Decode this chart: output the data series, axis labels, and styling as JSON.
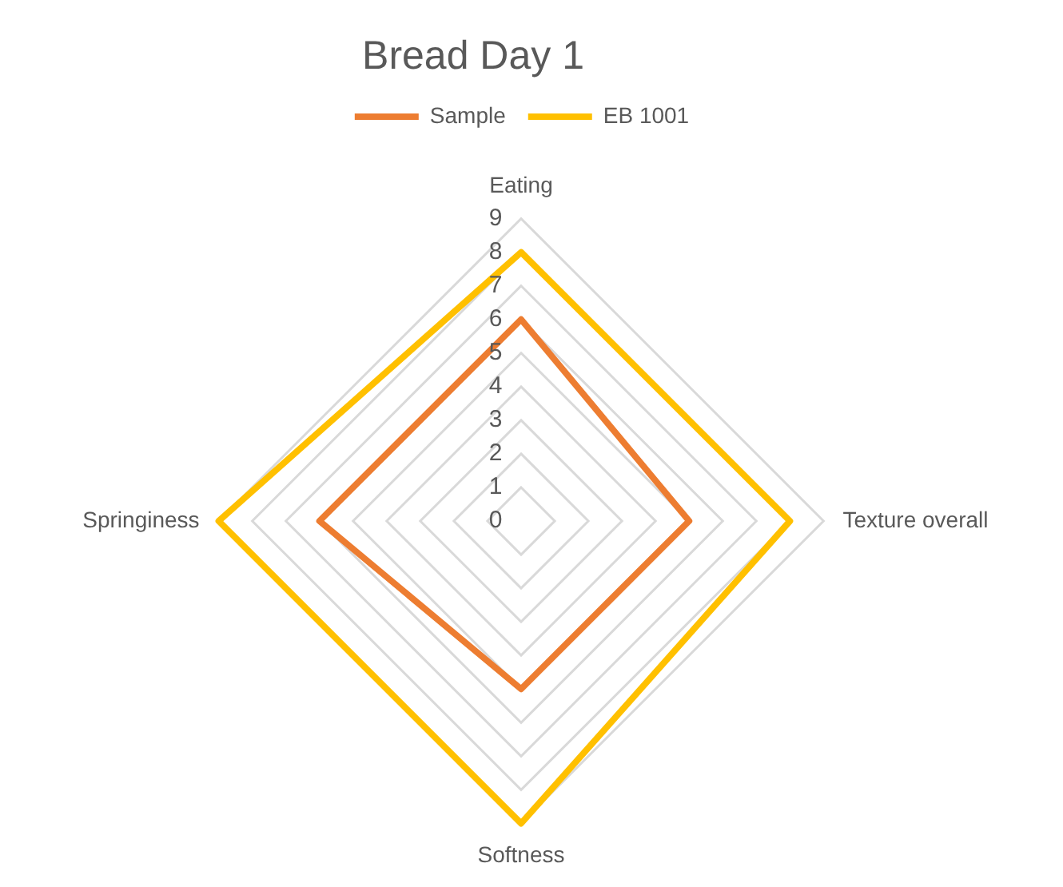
{
  "chart_data": {
    "type": "radar",
    "title": "Bread Day 1",
    "categories": [
      "Eating",
      "Texture overall",
      "Softness",
      "Springiness"
    ],
    "series": [
      {
        "name": "Sample",
        "color": "#ed7d31",
        "values": [
          6,
          5,
          5,
          6
        ]
      },
      {
        "name": "EB 1001",
        "color": "#ffc000",
        "values": [
          8,
          8,
          9,
          9
        ]
      }
    ],
    "ylim": [
      0,
      9
    ],
    "yticks": [
      0,
      1,
      2,
      3,
      4,
      5,
      6,
      7,
      8,
      9
    ],
    "grid": true,
    "legend": "top",
    "marker": "none",
    "line_style": "solid"
  }
}
